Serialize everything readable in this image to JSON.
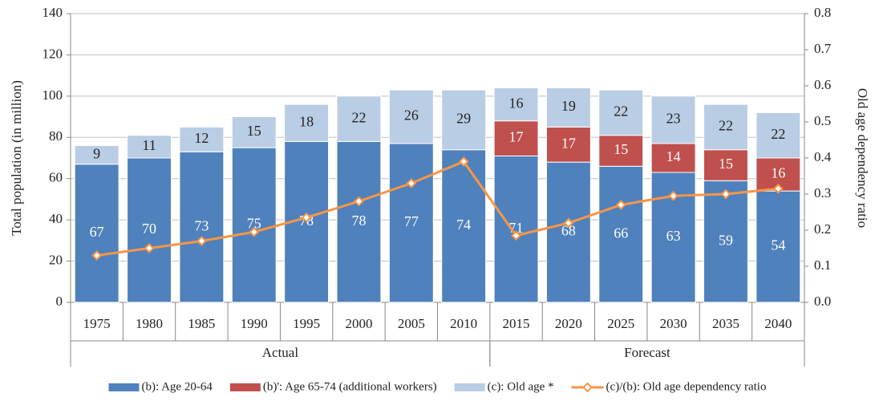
{
  "chart_data": {
    "type": "bar",
    "stacked": true,
    "y_label": "Total population (in million)",
    "y2_label": "Old age dependency ratio",
    "categories": [
      "1975",
      "1980",
      "1985",
      "1990",
      "1995",
      "2000",
      "2005",
      "2010",
      "2015",
      "2020",
      "2025",
      "2030",
      "2035",
      "2040"
    ],
    "groups": [
      {
        "label": "Actual",
        "count": 8
      },
      {
        "label": "Forecast",
        "count": 6
      }
    ],
    "series": [
      {
        "name": "(b): Age 20-64",
        "type": "bar",
        "color": "#4f81bd",
        "label_color": "#ffffff",
        "values": [
          67,
          70,
          73,
          75,
          78,
          78,
          77,
          74,
          71,
          68,
          66,
          63,
          59,
          54
        ]
      },
      {
        "name": "(b)': Age 65-74 (additional workers)",
        "type": "bar",
        "color": "#c0504d",
        "label_color": "#ffffff",
        "values": [
          null,
          null,
          null,
          null,
          null,
          null,
          null,
          null,
          17,
          17,
          15,
          14,
          15,
          16
        ]
      },
      {
        "name": "(c): Old age *",
        "type": "bar",
        "color": "#b9cde5",
        "label_color": "#222222",
        "values": [
          9,
          11,
          12,
          15,
          18,
          22,
          26,
          29,
          16,
          19,
          22,
          23,
          22,
          22
        ]
      },
      {
        "name": "(c)/(b): Old age dependency ratio",
        "type": "line",
        "axis": "y2",
        "color": "#f79646",
        "values": [
          0.13,
          0.15,
          0.17,
          0.195,
          0.235,
          0.28,
          0.33,
          0.39,
          0.185,
          0.22,
          0.27,
          0.295,
          0.3,
          0.315
        ]
      }
    ],
    "ylim": [
      0,
      140
    ],
    "yticks": [
      0,
      20,
      40,
      60,
      80,
      100,
      120,
      140
    ],
    "y2lim": [
      0,
      0.8
    ],
    "y2ticks": [
      {
        "value": 0,
        "label": "0.0"
      },
      0.1,
      0.2,
      0.3,
      0.4,
      0.5,
      0.6,
      0.7,
      0.8
    ],
    "grid": true
  }
}
